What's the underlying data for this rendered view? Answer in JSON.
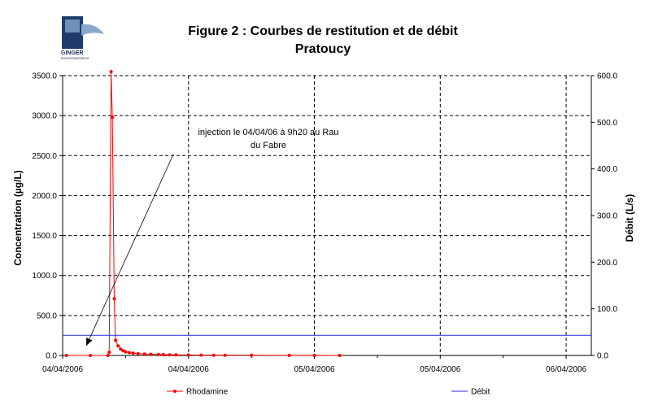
{
  "logo": {
    "line1": "GINGER",
    "line2": "ENVIRONNEMENT"
  },
  "chart_data": {
    "type": "line",
    "title": "Figure 2 : Courbes de restitution et de débit",
    "subtitle": "Pratoucy",
    "ylabel": "Concentration (µg/L)",
    "y2label": "Débit (L/s)",
    "ylim": [
      0,
      3500
    ],
    "y2lim": [
      0,
      600
    ],
    "yticks": [
      "0.0",
      "500.0",
      "1000.0",
      "1500.0",
      "2000.0",
      "2500.0",
      "3000.0",
      "3500.0"
    ],
    "y2ticks": [
      "0.0",
      "100.0",
      "200.0",
      "300.0",
      "400.0",
      "500.0",
      "600.0"
    ],
    "xlim": [
      0,
      4.2
    ],
    "xticks": [
      {
        "x": 0,
        "label": "04/04/2006"
      },
      {
        "x": 1,
        "label": "04/04/2006"
      },
      {
        "x": 2,
        "label": "05/04/2006"
      },
      {
        "x": 3,
        "label": "05/04/2006"
      },
      {
        "x": 4,
        "label": "06/04/2006"
      }
    ],
    "grid": true,
    "legend_position": "bottom",
    "series": [
      {
        "name": "Rhodamine",
        "axis": "left",
        "color": "#ff0000",
        "marker": "circle",
        "x": [
          0.03,
          0.22,
          0.36,
          0.37,
          0.385,
          0.395,
          0.41,
          0.42,
          0.44,
          0.46,
          0.48,
          0.5,
          0.53,
          0.56,
          0.6,
          0.65,
          0.7,
          0.76,
          0.8,
          0.85,
          0.9,
          1.0,
          1.1,
          1.2,
          1.29,
          1.5,
          1.8,
          2.0,
          2.2
        ],
        "y": [
          0,
          0,
          0,
          40,
          3550,
          2980,
          710,
          190,
          120,
          80,
          60,
          45,
          35,
          28,
          22,
          18,
          15,
          12,
          10,
          8,
          7,
          5,
          4,
          3,
          3,
          2,
          1,
          1,
          0
        ]
      },
      {
        "name": "Débit",
        "axis": "right",
        "color": "#2b2bd9",
        "marker": "none",
        "x": [
          0,
          4.2
        ],
        "y": [
          43,
          43
        ]
      }
    ],
    "annotations": [
      {
        "text_lines": [
          "injection le 04/04/06 à 9h20 au Rau",
          "du Fabre"
        ],
        "target_x": 0.22,
        "target_y": 0
      }
    ]
  }
}
